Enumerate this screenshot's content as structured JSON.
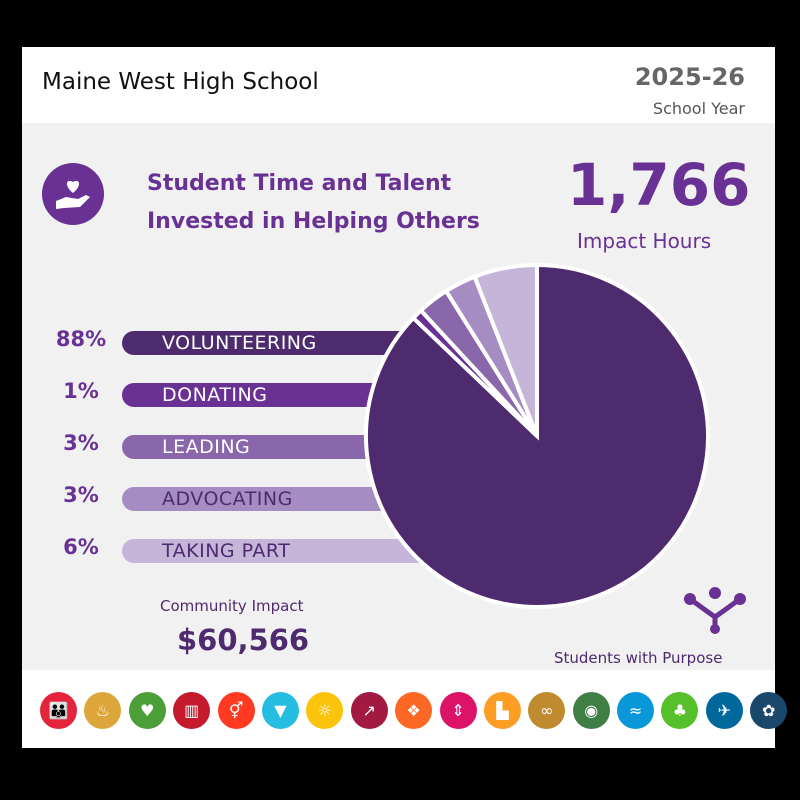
{
  "header": {
    "school": "Maine West High School",
    "year": "2025-26",
    "year_label": "School Year"
  },
  "main": {
    "title_line1": "Student Time and Talent",
    "title_line2": "Invested in Helping Others",
    "impact_hours": "1,766",
    "impact_hours_label": "Impact Hours",
    "community_impact_label": "Community Impact",
    "community_impact_value": "$60,566",
    "brand": "Students with Purpose"
  },
  "chart_data": {
    "type": "pie",
    "categories": [
      "VOLUNTEERING",
      "DONATING",
      "LEADING",
      "ADVOCATING",
      "TAKING PART"
    ],
    "labels": [
      "88%",
      "1%",
      "3%",
      "3%",
      "6%"
    ],
    "values": [
      88,
      1,
      3,
      3,
      6
    ],
    "colors": [
      "#4e2a6e",
      "#6a3194",
      "#8a66ab",
      "#a58dc3",
      "#c4b5d9"
    ],
    "text_colors": [
      "#ffffff",
      "#ffffff",
      "#ffffff",
      "#4e2a6e",
      "#4e2a6e"
    ]
  },
  "sdg_icons": [
    {
      "name": "no-poverty-icon",
      "color": "#e5243b",
      "glyph": "👪"
    },
    {
      "name": "zero-hunger-icon",
      "color": "#dda63a",
      "glyph": "♨"
    },
    {
      "name": "good-health-icon",
      "color": "#4c9f38",
      "glyph": "♥"
    },
    {
      "name": "quality-education-icon",
      "color": "#c5192d",
      "glyph": "▥"
    },
    {
      "name": "gender-equality-icon",
      "color": "#ff3a21",
      "glyph": "⚥"
    },
    {
      "name": "clean-water-icon",
      "color": "#26bde2",
      "glyph": "▼"
    },
    {
      "name": "clean-energy-icon",
      "color": "#fcc30b",
      "glyph": "☼"
    },
    {
      "name": "decent-work-icon",
      "color": "#a21942",
      "glyph": "↗"
    },
    {
      "name": "industry-innovation-icon",
      "color": "#fd6925",
      "glyph": "❖"
    },
    {
      "name": "reduced-inequalities-icon",
      "color": "#dd1367",
      "glyph": "⇕"
    },
    {
      "name": "sustainable-cities-icon",
      "color": "#fd9d24",
      "glyph": "▙"
    },
    {
      "name": "responsible-consumption-icon",
      "color": "#bf8b2e",
      "glyph": "∞"
    },
    {
      "name": "climate-action-icon",
      "color": "#3f7e44",
      "glyph": "◉"
    },
    {
      "name": "life-below-water-icon",
      "color": "#0a97d9",
      "glyph": "≈"
    },
    {
      "name": "life-on-land-icon",
      "color": "#56c02b",
      "glyph": "♣"
    },
    {
      "name": "peace-justice-icon",
      "color": "#00689d",
      "glyph": "✈"
    },
    {
      "name": "partnerships-icon",
      "color": "#19486a",
      "glyph": "✿"
    }
  ]
}
